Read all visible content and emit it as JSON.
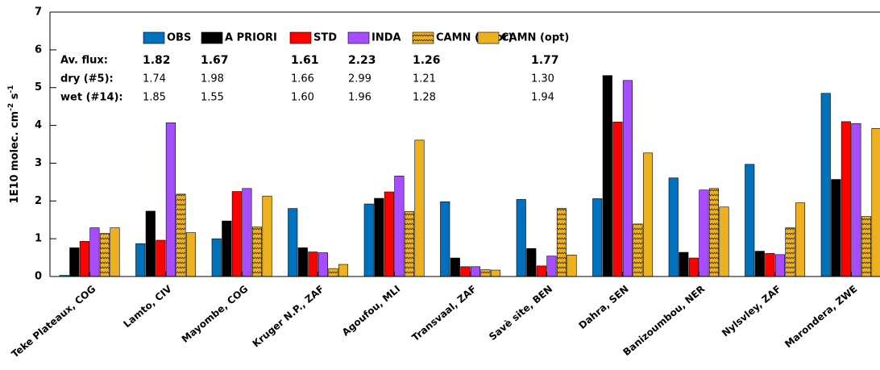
{
  "chart_data": {
    "type": "bar",
    "ylabel_parts": [
      "1E10 molec. cm",
      "-2",
      " s",
      "-1"
    ],
    "categories": [
      "Teke Plateaux, COG",
      "Lamto, CIV",
      "Mayombe, COG",
      "Kruger N.P., ZAF",
      "Agoufou, MLI",
      "Transvaal, ZAF",
      "Savè site, BEN",
      "Dahra, SEN",
      "Banizoumbou, NER",
      "Nylsvley, ZAF",
      "Marondera, ZWE"
    ],
    "series": [
      {
        "name": "OBS",
        "color": "#0072bd",
        "values": [
          0.03,
          0.87,
          1.0,
          1.8,
          1.92,
          1.98,
          2.04,
          2.06,
          2.61,
          2.97,
          4.85
        ]
      },
      {
        "name": "A PRIORI",
        "color": "#000000",
        "values": [
          0.76,
          1.73,
          1.47,
          0.76,
          2.07,
          0.49,
          0.74,
          5.32,
          0.64,
          0.67,
          2.57
        ]
      },
      {
        "name": "STD",
        "color": "#ff0000",
        "values": [
          0.93,
          0.96,
          2.25,
          0.65,
          2.24,
          0.26,
          0.28,
          4.09,
          0.49,
          0.61,
          4.1
        ]
      },
      {
        "name": "INDA",
        "color": "#a64dff",
        "values": [
          1.29,
          4.07,
          2.33,
          0.63,
          2.66,
          0.26,
          0.54,
          5.19,
          2.29,
          0.58,
          4.05
        ]
      },
      {
        "name": "CAMN (prior)",
        "color": "#edb120",
        "hatch": true,
        "values": [
          1.14,
          2.18,
          1.31,
          0.21,
          1.72,
          0.18,
          1.8,
          1.39,
          2.33,
          1.29,
          1.59
        ]
      },
      {
        "name": "CAMN (opt)",
        "color": "#edb120",
        "values": [
          1.29,
          1.16,
          2.13,
          0.32,
          3.61,
          0.17,
          0.57,
          3.27,
          1.84,
          1.95,
          3.92
        ]
      }
    ],
    "ylim": [
      0,
      7
    ],
    "yticks": [
      0,
      1,
      2,
      3,
      4,
      5,
      6,
      7
    ],
    "stats": {
      "rows": [
        {
          "label": "Av. flux:",
          "values": [
            "1.82",
            "1.67",
            "1.61",
            "2.23",
            "1.26",
            "1.77"
          ]
        },
        {
          "label": "dry (#5):",
          "values": [
            "1.74",
            "1.98",
            "1.66",
            "2.99",
            "1.21",
            "1.30"
          ]
        },
        {
          "label": "wet (#14):",
          "values": [
            "1.85",
            "1.55",
            "1.60",
            "1.96",
            "1.28",
            "1.94"
          ]
        }
      ]
    }
  }
}
